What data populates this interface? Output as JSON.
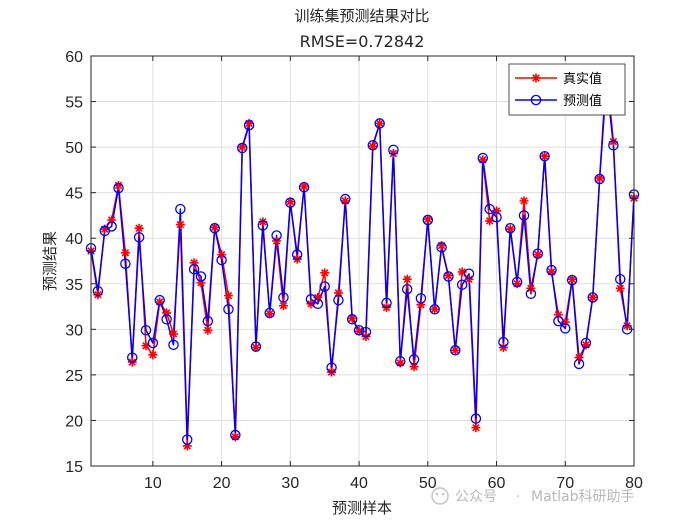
{
  "chart_data": {
    "type": "line",
    "title": "训练集预测结果对比",
    "subtitle": "RMSE=0.72842",
    "xlabel": "预测样本",
    "ylabel": "预测结果",
    "xlim": [
      1,
      80
    ],
    "ylim": [
      15,
      60
    ],
    "xticks": [
      10,
      20,
      30,
      40,
      50,
      60,
      70,
      80
    ],
    "yticks": [
      15,
      20,
      25,
      30,
      35,
      40,
      45,
      50,
      55,
      60
    ],
    "grid": true,
    "legend_position": "top-right",
    "x": [
      1,
      2,
      3,
      4,
      5,
      6,
      7,
      8,
      9,
      10,
      11,
      12,
      13,
      14,
      15,
      16,
      17,
      18,
      19,
      20,
      21,
      22,
      23,
      24,
      25,
      26,
      27,
      28,
      29,
      30,
      31,
      32,
      33,
      34,
      35,
      36,
      37,
      38,
      39,
      40,
      41,
      42,
      43,
      44,
      45,
      46,
      47,
      48,
      49,
      50,
      51,
      52,
      53,
      54,
      55,
      56,
      57,
      58,
      59,
      60,
      61,
      62,
      63,
      64,
      65,
      66,
      67,
      68,
      69,
      70,
      71,
      72,
      73,
      74,
      75,
      76,
      77,
      78,
      79,
      80
    ],
    "series": [
      {
        "name": "真实值",
        "color": "#ff0000",
        "marker": "asterisk",
        "values": [
          38.6,
          33.8,
          41.0,
          42.0,
          45.8,
          38.4,
          26.4,
          41.1,
          28.2,
          27.2,
          33.0,
          31.8,
          29.5,
          41.5,
          17.2,
          37.3,
          35.1,
          29.9,
          41.2,
          38.2,
          33.7,
          18.2,
          50.0,
          52.6,
          28.0,
          41.8,
          31.7,
          39.7,
          32.6,
          44.0,
          37.7,
          45.7,
          32.8,
          33.5,
          36.2,
          25.3,
          34.0,
          44.1,
          31.2,
          29.8,
          29.2,
          50.1,
          52.6,
          32.4,
          49.3,
          26.3,
          35.5,
          25.9,
          32.7,
          42.1,
          32.2,
          39.2,
          35.9,
          27.7,
          36.3,
          35.5,
          19.2,
          48.6,
          41.9,
          43.0,
          28.0,
          41.0,
          35.0,
          44.1,
          34.5,
          38.2,
          49.0,
          36.3,
          31.6,
          30.8,
          35.5,
          26.9,
          28.3,
          33.5,
          46.6,
          58.6,
          50.6,
          34.5,
          30.4,
          44.4
        ]
      },
      {
        "name": "预测值",
        "color": "#0000ff",
        "marker": "circle",
        "values": [
          38.9,
          34.2,
          40.8,
          41.3,
          45.5,
          37.2,
          26.9,
          40.1,
          29.9,
          28.5,
          33.2,
          31.1,
          28.3,
          43.2,
          17.9,
          36.6,
          35.8,
          30.9,
          41.1,
          37.6,
          32.2,
          18.4,
          49.9,
          52.4,
          28.1,
          41.4,
          31.8,
          40.3,
          33.5,
          43.9,
          38.2,
          45.6,
          33.3,
          32.8,
          34.7,
          25.8,
          33.2,
          44.3,
          31.1,
          29.9,
          29.7,
          50.2,
          52.6,
          32.9,
          49.7,
          26.5,
          34.4,
          26.7,
          33.4,
          42.0,
          32.2,
          39.0,
          35.8,
          27.7,
          34.9,
          36.1,
          20.2,
          48.8,
          43.2,
          42.3,
          28.6,
          41.1,
          35.2,
          42.5,
          33.9,
          38.3,
          49.0,
          36.5,
          30.9,
          30.1,
          35.4,
          26.2,
          28.5,
          33.5,
          46.5,
          57.2,
          50.2,
          35.5,
          30.0,
          44.8
        ]
      }
    ]
  },
  "watermark": {
    "separator": "·",
    "left": "公众号",
    "right": "Matlab科研助手"
  }
}
